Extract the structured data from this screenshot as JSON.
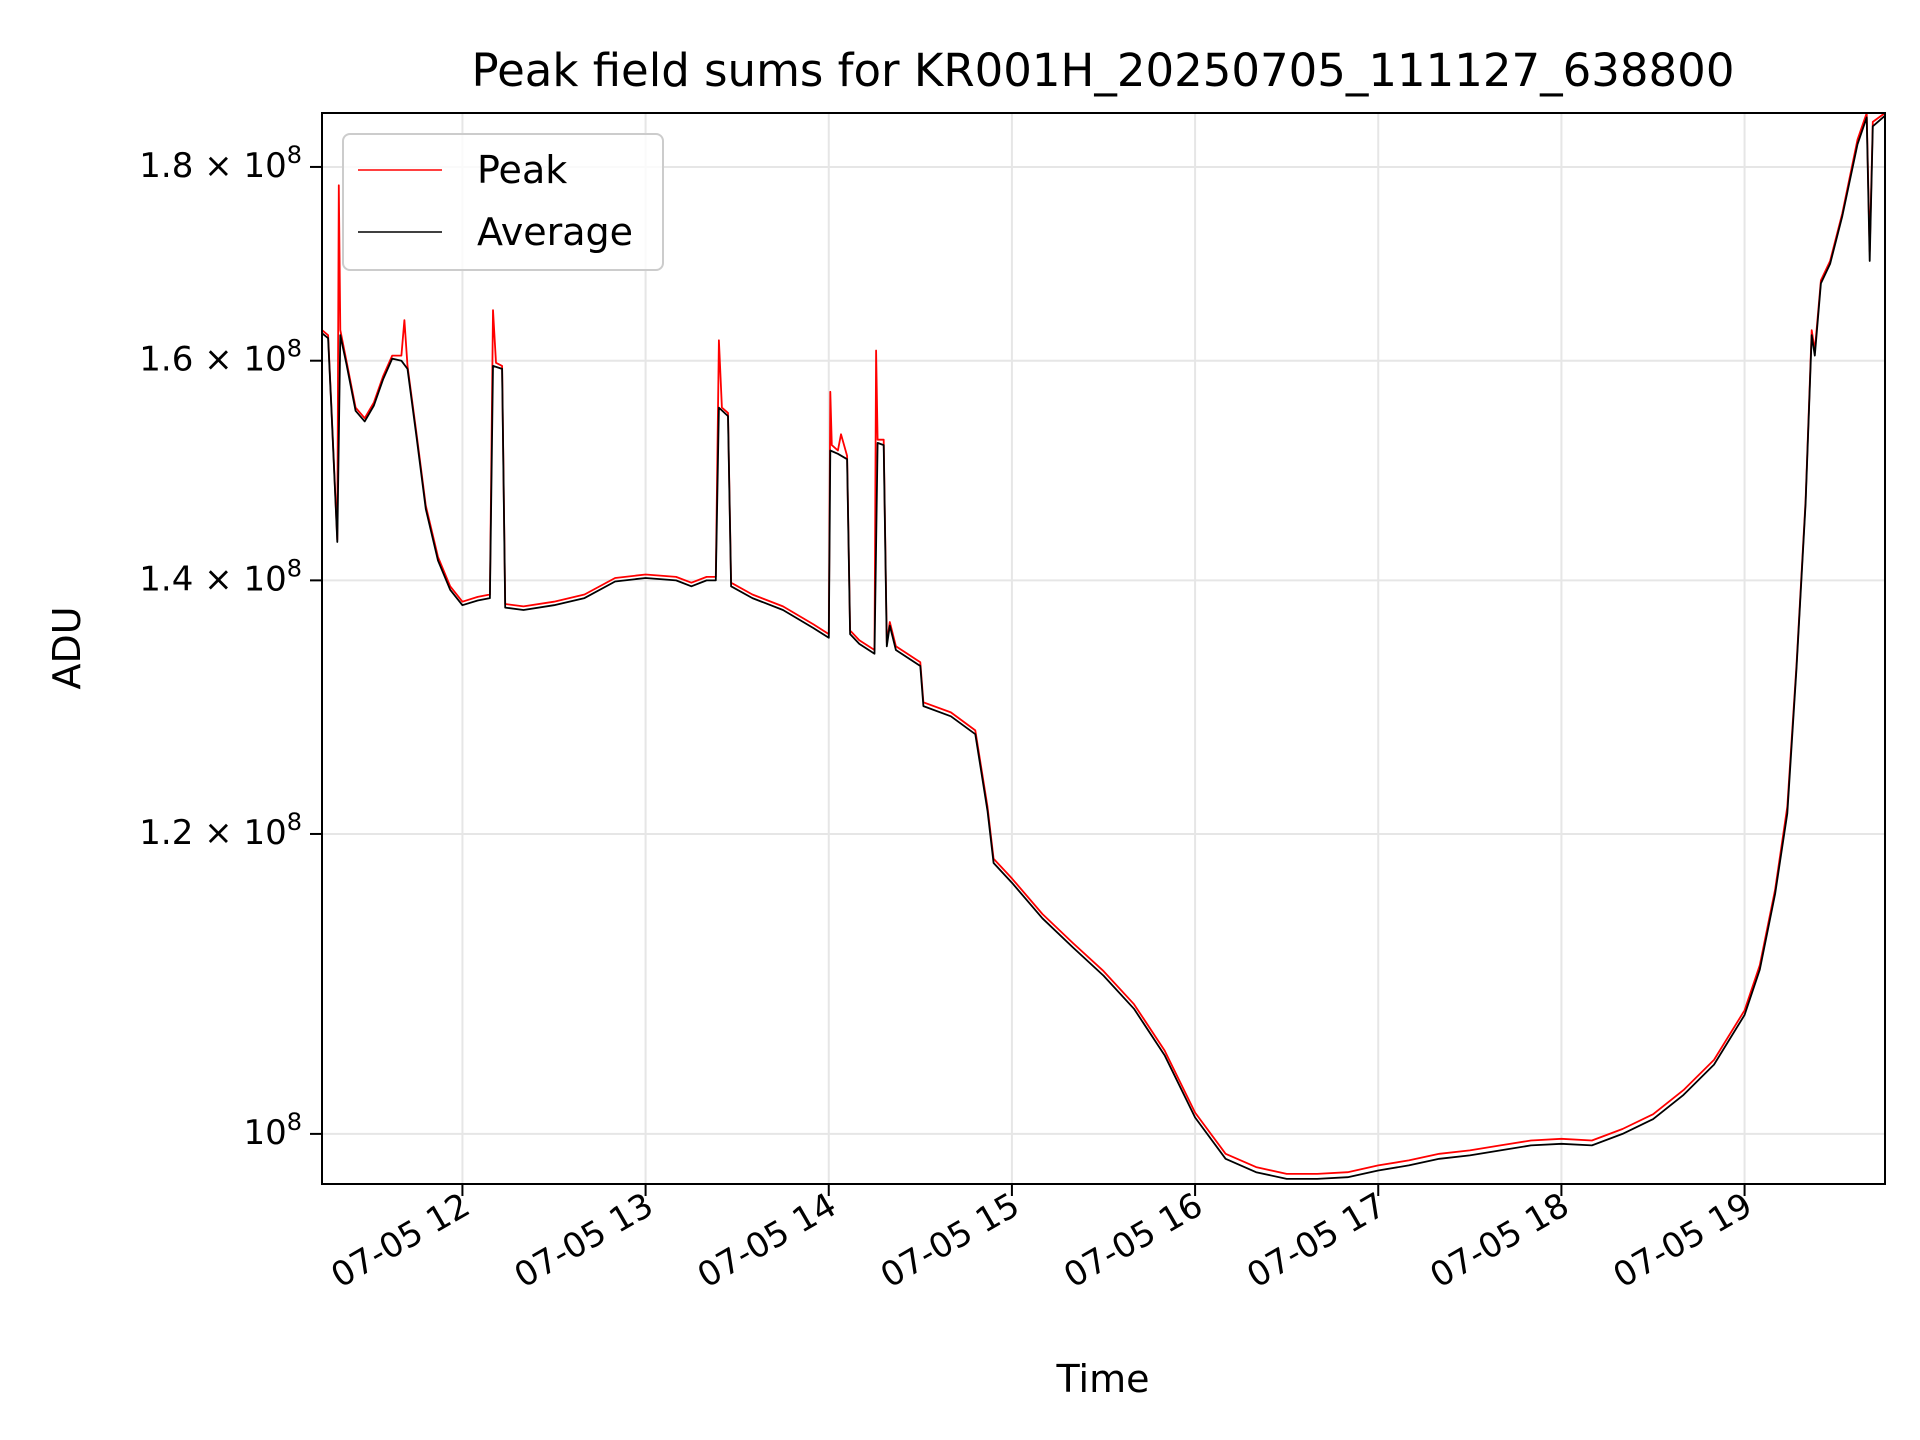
{
  "chart_data": {
    "type": "line",
    "title": "Peak field sums for KR001H_20250705_111127_638800",
    "xlabel": "Time",
    "ylabel": "ADU",
    "y_scale": "log",
    "grid": true,
    "legend_position": "top-left",
    "xlim": [
      "2025-07-05 11:14",
      "2025-07-05 19:46"
    ],
    "ylim": [
      97000000,
      186000000
    ],
    "x_ticks": [
      {
        "t": "2025-07-05 12:00",
        "label": "07-05 12"
      },
      {
        "t": "2025-07-05 13:00",
        "label": "07-05 13"
      },
      {
        "t": "2025-07-05 14:00",
        "label": "07-05 14"
      },
      {
        "t": "2025-07-05 15:00",
        "label": "07-05 15"
      },
      {
        "t": "2025-07-05 16:00",
        "label": "07-05 16"
      },
      {
        "t": "2025-07-05 17:00",
        "label": "07-05 17"
      },
      {
        "t": "2025-07-05 18:00",
        "label": "07-05 18"
      },
      {
        "t": "2025-07-05 19:00",
        "label": "07-05 19"
      }
    ],
    "y_ticks": [
      {
        "v": 100000000,
        "base": "10",
        "exp": "8",
        "mant": ""
      },
      {
        "v": 120000000,
        "base": "10",
        "exp": "8",
        "mant": "1.2 × "
      },
      {
        "v": 140000000,
        "base": "10",
        "exp": "8",
        "mant": "1.4 × "
      },
      {
        "v": 160000000,
        "base": "10",
        "exp": "8",
        "mant": "1.6 × "
      },
      {
        "v": 180000000,
        "base": "10",
        "exp": "8",
        "mant": "1.8 × "
      }
    ],
    "series": [
      {
        "name": "Peak",
        "color": "#ff0000",
        "points": [
          [
            "2025-07-05 11:14",
            163.0
          ],
          [
            "2025-07-05 11:16",
            162.5
          ],
          [
            "2025-07-05 11:17",
            156.0
          ],
          [
            "2025-07-05 11:19",
            143.5
          ],
          [
            "2025-07-05 11:19:30",
            178.0
          ],
          [
            "2025-07-05 11:20",
            163.0
          ],
          [
            "2025-07-05 11:22",
            160.0
          ],
          [
            "2025-07-05 11:25",
            155.5
          ],
          [
            "2025-07-05 11:28",
            154.5
          ],
          [
            "2025-07-05 11:31",
            156.0
          ],
          [
            "2025-07-05 11:34",
            158.5
          ],
          [
            "2025-07-05 11:37",
            160.5
          ],
          [
            "2025-07-05 11:40",
            160.5
          ],
          [
            "2025-07-05 11:41",
            164.0
          ],
          [
            "2025-07-05 11:42",
            159.5
          ],
          [
            "2025-07-05 11:45",
            153.0
          ],
          [
            "2025-07-05 11:48",
            146.5
          ],
          [
            "2025-07-05 11:52",
            142.0
          ],
          [
            "2025-07-05 11:56",
            139.5
          ],
          [
            "2025-07-05 12:00",
            138.2
          ],
          [
            "2025-07-05 12:05",
            138.6
          ],
          [
            "2025-07-05 12:09",
            138.8
          ],
          [
            "2025-07-05 12:10",
            165.0
          ],
          [
            "2025-07-05 12:11",
            159.8
          ],
          [
            "2025-07-05 12:13",
            159.5
          ],
          [
            "2025-07-05 12:14",
            138.0
          ],
          [
            "2025-07-05 12:20",
            137.8
          ],
          [
            "2025-07-05 12:30",
            138.2
          ],
          [
            "2025-07-05 12:40",
            138.8
          ],
          [
            "2025-07-05 12:50",
            140.2
          ],
          [
            "2025-07-05 13:00",
            140.5
          ],
          [
            "2025-07-05 13:10",
            140.3
          ],
          [
            "2025-07-05 13:15",
            139.8
          ],
          [
            "2025-07-05 13:20",
            140.3
          ],
          [
            "2025-07-05 13:23",
            140.3
          ],
          [
            "2025-07-05 13:24",
            162.0
          ],
          [
            "2025-07-05 13:25",
            155.5
          ],
          [
            "2025-07-05 13:27",
            155.0
          ],
          [
            "2025-07-05 13:28",
            139.8
          ],
          [
            "2025-07-05 13:35",
            138.8
          ],
          [
            "2025-07-05 13:45",
            137.8
          ],
          [
            "2025-07-05 13:55",
            136.3
          ],
          [
            "2025-07-05 14:00",
            135.5
          ],
          [
            "2025-07-05 14:00:30",
            157.0
          ],
          [
            "2025-07-05 14:01",
            152.0
          ],
          [
            "2025-07-05 14:03",
            151.5
          ],
          [
            "2025-07-05 14:04",
            153.0
          ],
          [
            "2025-07-05 14:06",
            151.0
          ],
          [
            "2025-07-05 14:07",
            135.8
          ],
          [
            "2025-07-05 14:10",
            135.0
          ],
          [
            "2025-07-05 14:15",
            134.2
          ],
          [
            "2025-07-05 14:15:30",
            161.0
          ],
          [
            "2025-07-05 14:16",
            152.5
          ],
          [
            "2025-07-05 14:18",
            152.5
          ],
          [
            "2025-07-05 14:19",
            134.8
          ],
          [
            "2025-07-05 14:20",
            136.5
          ],
          [
            "2025-07-05 14:22",
            134.5
          ],
          [
            "2025-07-05 14:30",
            133.2
          ],
          [
            "2025-07-05 14:31",
            130.0
          ],
          [
            "2025-07-05 14:40",
            129.2
          ],
          [
            "2025-07-05 14:48",
            127.8
          ],
          [
            "2025-07-05 14:52",
            122.0
          ],
          [
            "2025-07-05 14:54",
            118.2
          ],
          [
            "2025-07-05 15:00",
            116.8
          ],
          [
            "2025-07-05 15:10",
            114.3
          ],
          [
            "2025-07-05 15:20",
            112.3
          ],
          [
            "2025-07-05 15:30",
            110.4
          ],
          [
            "2025-07-05 15:40",
            108.2
          ],
          [
            "2025-07-05 15:50",
            105.2
          ],
          [
            "2025-07-05 16:00",
            101.3
          ],
          [
            "2025-07-05 16:10",
            98.8
          ],
          [
            "2025-07-05 16:20",
            98.0
          ],
          [
            "2025-07-05 16:30",
            97.6
          ],
          [
            "2025-07-05 16:40",
            97.6
          ],
          [
            "2025-07-05 16:50",
            97.7
          ],
          [
            "2025-07-05 17:00",
            98.1
          ],
          [
            "2025-07-05 17:10",
            98.4
          ],
          [
            "2025-07-05 17:20",
            98.8
          ],
          [
            "2025-07-05 17:30",
            99.0
          ],
          [
            "2025-07-05 17:40",
            99.3
          ],
          [
            "2025-07-05 17:50",
            99.6
          ],
          [
            "2025-07-05 18:00",
            99.7
          ],
          [
            "2025-07-05 18:10",
            99.6
          ],
          [
            "2025-07-05 18:20",
            100.3
          ],
          [
            "2025-07-05 18:30",
            101.2
          ],
          [
            "2025-07-05 18:40",
            102.7
          ],
          [
            "2025-07-05 18:50",
            104.6
          ],
          [
            "2025-07-05 19:00",
            107.8
          ],
          [
            "2025-07-05 19:05",
            110.8
          ],
          [
            "2025-07-05 19:10",
            116.0
          ],
          [
            "2025-07-05 19:14",
            122.0
          ],
          [
            "2025-07-05 19:17",
            133.0
          ],
          [
            "2025-07-05 19:20",
            147.0
          ],
          [
            "2025-07-05 19:22",
            163.0
          ],
          [
            "2025-07-05 19:23",
            161.0
          ],
          [
            "2025-07-05 19:25",
            168.0
          ],
          [
            "2025-07-05 19:28",
            170.0
          ],
          [
            "2025-07-05 19:32",
            175.0
          ],
          [
            "2025-07-05 19:37",
            183.0
          ],
          [
            "2025-07-05 19:40",
            186.0
          ],
          [
            "2025-07-05 19:41",
            171.0
          ],
          [
            "2025-07-05 19:42",
            185.0
          ],
          [
            "2025-07-05 19:46",
            186.0
          ]
        ]
      },
      {
        "name": "Average",
        "color": "#000000",
        "points": [
          [
            "2025-07-05 11:14",
            162.7
          ],
          [
            "2025-07-05 11:16",
            162.2
          ],
          [
            "2025-07-05 11:17",
            155.8
          ],
          [
            "2025-07-05 11:19",
            143.3
          ],
          [
            "2025-07-05 11:20",
            162.5
          ],
          [
            "2025-07-05 11:22",
            159.7
          ],
          [
            "2025-07-05 11:25",
            155.2
          ],
          [
            "2025-07-05 11:28",
            154.2
          ],
          [
            "2025-07-05 11:31",
            155.7
          ],
          [
            "2025-07-05 11:34",
            158.2
          ],
          [
            "2025-07-05 11:37",
            160.2
          ],
          [
            "2025-07-05 11:40",
            160.0
          ],
          [
            "2025-07-05 11:42",
            159.2
          ],
          [
            "2025-07-05 11:45",
            152.7
          ],
          [
            "2025-07-05 11:48",
            146.2
          ],
          [
            "2025-07-05 11:52",
            141.7
          ],
          [
            "2025-07-05 11:56",
            139.2
          ],
          [
            "2025-07-05 12:00",
            137.9
          ],
          [
            "2025-07-05 12:05",
            138.3
          ],
          [
            "2025-07-05 12:09",
            138.5
          ],
          [
            "2025-07-05 12:10",
            159.5
          ],
          [
            "2025-07-05 12:13",
            159.2
          ],
          [
            "2025-07-05 12:14",
            137.7
          ],
          [
            "2025-07-05 12:20",
            137.5
          ],
          [
            "2025-07-05 12:30",
            137.9
          ],
          [
            "2025-07-05 12:40",
            138.5
          ],
          [
            "2025-07-05 12:50",
            139.9
          ],
          [
            "2025-07-05 13:00",
            140.2
          ],
          [
            "2025-07-05 13:10",
            140.0
          ],
          [
            "2025-07-05 13:15",
            139.5
          ],
          [
            "2025-07-05 13:20",
            140.0
          ],
          [
            "2025-07-05 13:23",
            140.0
          ],
          [
            "2025-07-05 13:24",
            155.5
          ],
          [
            "2025-07-05 13:27",
            154.7
          ],
          [
            "2025-07-05 13:28",
            139.5
          ],
          [
            "2025-07-05 13:35",
            138.5
          ],
          [
            "2025-07-05 13:45",
            137.5
          ],
          [
            "2025-07-05 13:55",
            136.0
          ],
          [
            "2025-07-05 14:00",
            135.2
          ],
          [
            "2025-07-05 14:00:30",
            151.5
          ],
          [
            "2025-07-05 14:03",
            151.2
          ],
          [
            "2025-07-05 14:06",
            150.7
          ],
          [
            "2025-07-05 14:07",
            135.5
          ],
          [
            "2025-07-05 14:10",
            134.7
          ],
          [
            "2025-07-05 14:15",
            133.9
          ],
          [
            "2025-07-05 14:16",
            152.2
          ],
          [
            "2025-07-05 14:18",
            152.0
          ],
          [
            "2025-07-05 14:19",
            134.5
          ],
          [
            "2025-07-05 14:20",
            136.2
          ],
          [
            "2025-07-05 14:22",
            134.2
          ],
          [
            "2025-07-05 14:30",
            132.9
          ],
          [
            "2025-07-05 14:31",
            129.7
          ],
          [
            "2025-07-05 14:40",
            128.9
          ],
          [
            "2025-07-05 14:48",
            127.5
          ],
          [
            "2025-07-05 14:52",
            121.7
          ],
          [
            "2025-07-05 14:54",
            117.9
          ],
          [
            "2025-07-05 15:00",
            116.5
          ],
          [
            "2025-07-05 15:10",
            114.0
          ],
          [
            "2025-07-05 15:20",
            112.0
          ],
          [
            "2025-07-05 15:30",
            110.1
          ],
          [
            "2025-07-05 15:40",
            107.9
          ],
          [
            "2025-07-05 15:50",
            104.9
          ],
          [
            "2025-07-05 16:00",
            101.0
          ],
          [
            "2025-07-05 16:10",
            98.5
          ],
          [
            "2025-07-05 16:20",
            97.7
          ],
          [
            "2025-07-05 16:30",
            97.3
          ],
          [
            "2025-07-05 16:40",
            97.3
          ],
          [
            "2025-07-05 16:50",
            97.4
          ],
          [
            "2025-07-05 17:00",
            97.8
          ],
          [
            "2025-07-05 17:10",
            98.1
          ],
          [
            "2025-07-05 17:20",
            98.5
          ],
          [
            "2025-07-05 17:30",
            98.7
          ],
          [
            "2025-07-05 17:40",
            99.0
          ],
          [
            "2025-07-05 17:50",
            99.3
          ],
          [
            "2025-07-05 18:00",
            99.4
          ],
          [
            "2025-07-05 18:10",
            99.3
          ],
          [
            "2025-07-05 18:20",
            100.0
          ],
          [
            "2025-07-05 18:30",
            100.9
          ],
          [
            "2025-07-05 18:40",
            102.4
          ],
          [
            "2025-07-05 18:50",
            104.3
          ],
          [
            "2025-07-05 19:00",
            107.5
          ],
          [
            "2025-07-05 19:05",
            110.5
          ],
          [
            "2025-07-05 19:10",
            115.7
          ],
          [
            "2025-07-05 19:14",
            121.5
          ],
          [
            "2025-07-05 19:17",
            132.7
          ],
          [
            "2025-07-05 19:20",
            146.7
          ],
          [
            "2025-07-05 19:22",
            162.5
          ],
          [
            "2025-07-05 19:23",
            160.5
          ],
          [
            "2025-07-05 19:25",
            167.7
          ],
          [
            "2025-07-05 19:28",
            169.7
          ],
          [
            "2025-07-05 19:32",
            174.7
          ],
          [
            "2025-07-05 19:37",
            182.5
          ],
          [
            "2025-07-05 19:40",
            185.5
          ],
          [
            "2025-07-05 19:41",
            170.0
          ],
          [
            "2025-07-05 19:42",
            184.5
          ],
          [
            "2025-07-05 19:46",
            185.7
          ]
        ]
      }
    ],
    "y_unit_multiplier": 1000000
  }
}
